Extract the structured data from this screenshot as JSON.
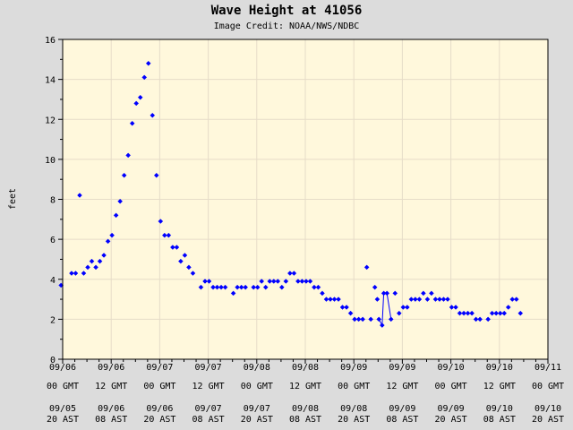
{
  "chart_data": {
    "type": "scatter",
    "title": "Wave Height at 41056",
    "subtitle": "Image Credit: NOAA/NWS/NDBC",
    "ylabel": "feet",
    "xlabel": "",
    "ylim": [
      0,
      16
    ],
    "yticks": [
      0,
      2,
      4,
      6,
      8,
      10,
      12,
      14,
      16
    ],
    "xlim_hours": [
      0,
      120
    ],
    "grid": true,
    "xticks": [
      {
        "hours": 0,
        "gmt": [
          "09/06",
          "00 GMT"
        ],
        "ast": [
          "09/05",
          "20 AST"
        ]
      },
      {
        "hours": 12,
        "gmt": [
          "09/06",
          "12 GMT"
        ],
        "ast": [
          "09/06",
          "08 AST"
        ]
      },
      {
        "hours": 24,
        "gmt": [
          "09/07",
          "00 GMT"
        ],
        "ast": [
          "09/06",
          "20 AST"
        ]
      },
      {
        "hours": 36,
        "gmt": [
          "09/07",
          "12 GMT"
        ],
        "ast": [
          "09/07",
          "08 AST"
        ]
      },
      {
        "hours": 48,
        "gmt": [
          "09/08",
          "00 GMT"
        ],
        "ast": [
          "09/07",
          "20 AST"
        ]
      },
      {
        "hours": 60,
        "gmt": [
          "09/08",
          "12 GMT"
        ],
        "ast": [
          "09/08",
          "08 AST"
        ]
      },
      {
        "hours": 72,
        "gmt": [
          "09/09",
          "00 GMT"
        ],
        "ast": [
          "09/08",
          "20 AST"
        ]
      },
      {
        "hours": 84,
        "gmt": [
          "09/09",
          "12 GMT"
        ],
        "ast": [
          "09/09",
          "08 AST"
        ]
      },
      {
        "hours": 96,
        "gmt": [
          "09/10",
          "00 GMT"
        ],
        "ast": [
          "09/09",
          "20 AST"
        ]
      },
      {
        "hours": 108,
        "gmt": [
          "09/10",
          "12 GMT"
        ],
        "ast": [
          "09/10",
          "08 AST"
        ]
      },
      {
        "hours": 120,
        "gmt": [
          "09/11",
          "00 GMT"
        ],
        "ast": [
          "09/10",
          "20 AST"
        ]
      }
    ],
    "series": [
      {
        "marker_color": "#0000ff",
        "points": [
          [
            -0.4,
            3.7
          ],
          [
            2.2,
            4.3
          ],
          [
            3.2,
            4.3
          ],
          [
            4.2,
            8.2
          ],
          [
            5.2,
            4.3
          ],
          [
            6.2,
            4.6
          ],
          [
            7.2,
            4.9
          ],
          [
            8.2,
            4.6
          ],
          [
            9.2,
            4.9
          ],
          [
            10.2,
            5.2
          ],
          [
            11.2,
            5.9
          ],
          [
            12.2,
            6.2
          ],
          [
            13.2,
            7.2
          ],
          [
            14.2,
            7.9
          ],
          [
            15.2,
            9.2
          ],
          [
            16.2,
            10.2
          ],
          [
            17.2,
            11.8
          ],
          [
            18.2,
            12.8
          ],
          [
            19.2,
            13.1
          ],
          [
            20.2,
            14.1
          ],
          [
            21.2,
            14.8
          ],
          [
            22.2,
            12.2
          ],
          [
            23.2,
            9.2
          ],
          [
            24.2,
            6.9
          ],
          [
            25.2,
            6.2
          ],
          [
            26.2,
            6.2
          ],
          [
            27.2,
            5.6
          ],
          [
            28.2,
            5.6
          ],
          [
            29.2,
            4.9
          ],
          [
            30.2,
            5.2
          ],
          [
            31.2,
            4.6
          ],
          [
            32.2,
            4.3
          ],
          [
            34.2,
            3.6
          ],
          [
            35.2,
            3.9
          ],
          [
            36.2,
            3.9
          ],
          [
            37.2,
            3.6
          ],
          [
            38.2,
            3.6
          ],
          [
            39.2,
            3.6
          ],
          [
            40.2,
            3.6
          ],
          [
            42.2,
            3.3
          ],
          [
            43.2,
            3.6
          ],
          [
            44.2,
            3.6
          ],
          [
            45.2,
            3.6
          ],
          [
            47.2,
            3.6
          ],
          [
            48.2,
            3.6
          ],
          [
            49.2,
            3.9
          ],
          [
            50.2,
            3.6
          ],
          [
            51.2,
            3.9
          ],
          [
            52.2,
            3.9
          ],
          [
            53.2,
            3.9
          ],
          [
            54.2,
            3.6
          ],
          [
            55.2,
            3.9
          ],
          [
            56.2,
            4.3
          ],
          [
            57.2,
            4.3
          ],
          [
            58.2,
            3.9
          ],
          [
            59.2,
            3.9
          ],
          [
            60.2,
            3.9
          ],
          [
            61.2,
            3.9
          ],
          [
            62.2,
            3.6
          ],
          [
            63.2,
            3.6
          ],
          [
            64.2,
            3.3
          ],
          [
            65.2,
            3.0
          ],
          [
            66.2,
            3.0
          ],
          [
            67.2,
            3.0
          ],
          [
            68.2,
            3.0
          ],
          [
            69.2,
            2.6
          ],
          [
            70.2,
            2.6
          ],
          [
            71.2,
            2.3
          ],
          [
            72.2,
            2.0
          ],
          [
            73.2,
            2.0
          ],
          [
            74.2,
            2.0
          ],
          [
            75.2,
            4.6
          ],
          [
            76.2,
            2.0
          ],
          [
            77.2,
            3.6
          ],
          [
            77.8,
            3.0
          ],
          [
            78.2,
            2.0
          ],
          [
            79.0,
            1.7
          ],
          [
            79.4,
            3.3
          ],
          [
            80.2,
            3.3
          ],
          [
            81.2,
            2.0
          ],
          [
            82.2,
            3.3
          ],
          [
            83.2,
            2.3
          ],
          [
            84.2,
            2.6
          ],
          [
            85.2,
            2.6
          ],
          [
            86.2,
            3.0
          ],
          [
            87.2,
            3.0
          ],
          [
            88.2,
            3.0
          ],
          [
            89.2,
            3.3
          ],
          [
            90.2,
            3.0
          ],
          [
            91.2,
            3.3
          ],
          [
            92.2,
            3.0
          ],
          [
            93.2,
            3.0
          ],
          [
            94.2,
            3.0
          ],
          [
            95.2,
            3.0
          ],
          [
            96.2,
            2.6
          ],
          [
            97.2,
            2.6
          ],
          [
            98.2,
            2.3
          ],
          [
            99.2,
            2.3
          ],
          [
            100.2,
            2.3
          ],
          [
            101.2,
            2.3
          ],
          [
            102.2,
            2.0
          ],
          [
            103.2,
            2.0
          ],
          [
            105.2,
            2.0
          ],
          [
            106.2,
            2.3
          ],
          [
            107.2,
            2.3
          ],
          [
            108.2,
            2.3
          ],
          [
            109.2,
            2.3
          ],
          [
            110.2,
            2.6
          ],
          [
            111.2,
            3.0
          ],
          [
            112.2,
            3.0
          ],
          [
            113.2,
            2.3
          ]
        ],
        "connected_runs": [
          [
            75,
            79
          ]
        ]
      }
    ]
  }
}
